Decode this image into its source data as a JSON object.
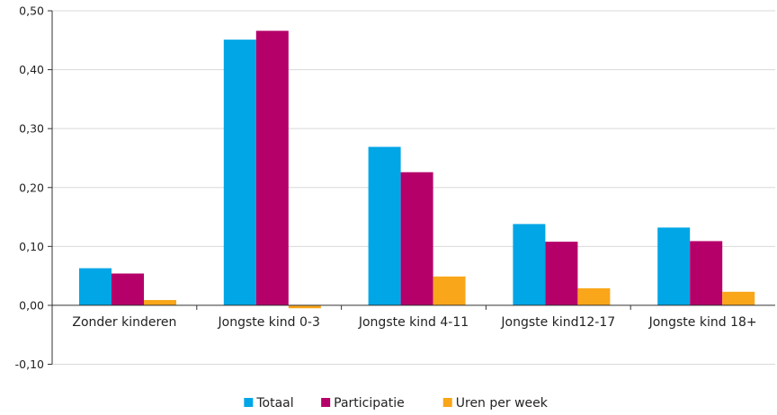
{
  "chart_data": {
    "type": "bar",
    "categories": [
      "Zonder kinderen",
      "Jongste kind 0-3",
      "Jongste kind 4-11",
      "Jongste kind12-17",
      "Jongste kind 18+"
    ],
    "series": [
      {
        "name": "Totaal",
        "color": "#00a6e6",
        "values": [
          0.063,
          0.451,
          0.269,
          0.138,
          0.132
        ]
      },
      {
        "name": "Participatie",
        "color": "#b5006a",
        "values": [
          0.054,
          0.466,
          0.226,
          0.108,
          0.109
        ]
      },
      {
        "name": "Uren per week",
        "color": "#f9a61a",
        "values": [
          0.009,
          -0.005,
          0.049,
          0.029,
          0.023
        ]
      }
    ],
    "ylim": [
      -0.1,
      0.5
    ],
    "yticks": [
      "-0,10",
      "0,00",
      "0,10",
      "0,20",
      "0,30",
      "0,40",
      "0,50"
    ],
    "ytick_values": [
      -0.1,
      0.0,
      0.1,
      0.2,
      0.3,
      0.4,
      0.5
    ],
    "grid": true,
    "legend_position": "bottom"
  }
}
